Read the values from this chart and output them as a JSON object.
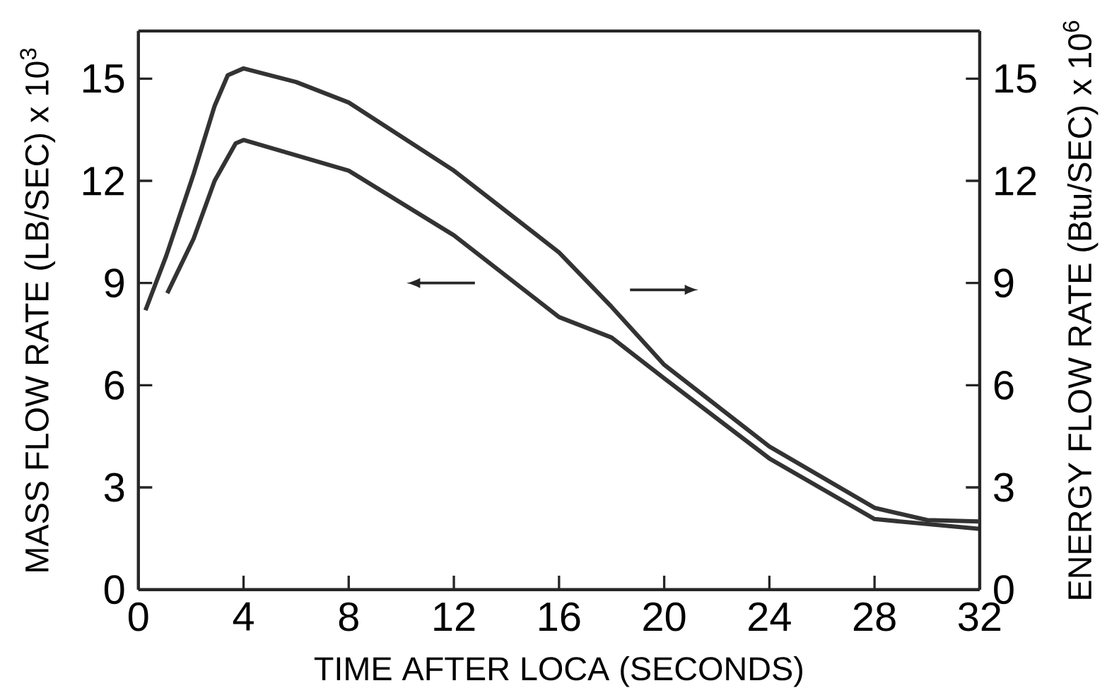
{
  "chart_data": {
    "type": "line",
    "xlabel": "TIME AFTER LOCA (SECONDS)",
    "ylabel": "MASS FLOW RATE (LB/SEC) x 10$^{3}$",
    "y2label": "ENERGY FLOW RATE (Btu/SEC) x 10$^{6}$",
    "xlim": [
      0,
      32
    ],
    "xticks": [
      0,
      4,
      8,
      12,
      16,
      20,
      24,
      28,
      32
    ],
    "ylim": [
      0,
      16.4
    ],
    "yticks": [
      0,
      3,
      6,
      9,
      12,
      15
    ],
    "y2lim": [
      0,
      16.4
    ],
    "y2ticks": [
      0,
      3,
      6,
      9,
      12,
      15
    ],
    "series": [
      {
        "color": "#333333",
        "x": [
          1.1,
          2.1,
          2.9,
          3.7,
          4.0,
          8,
          12,
          16,
          18,
          20,
          24,
          28,
          32
        ],
        "values": [
          8.7,
          10.3,
          12.0,
          13.1,
          13.2,
          12.3,
          10.4,
          8.0,
          7.4,
          6.2,
          3.85,
          2.07,
          1.78
        ]
      },
      {
        "color": "#333333",
        "axis": "y2",
        "x": [
          0.27,
          1.06,
          2.1,
          2.9,
          3.4,
          4.0,
          6,
          8,
          12,
          16,
          18,
          20,
          24,
          28,
          30,
          32
        ],
        "values": [
          8.2,
          9.8,
          12.2,
          14.2,
          15.1,
          15.3,
          14.9,
          14.3,
          12.3,
          9.9,
          8.3,
          6.6,
          4.2,
          2.4,
          2.04,
          2.0
        ]
      }
    ]
  }
}
